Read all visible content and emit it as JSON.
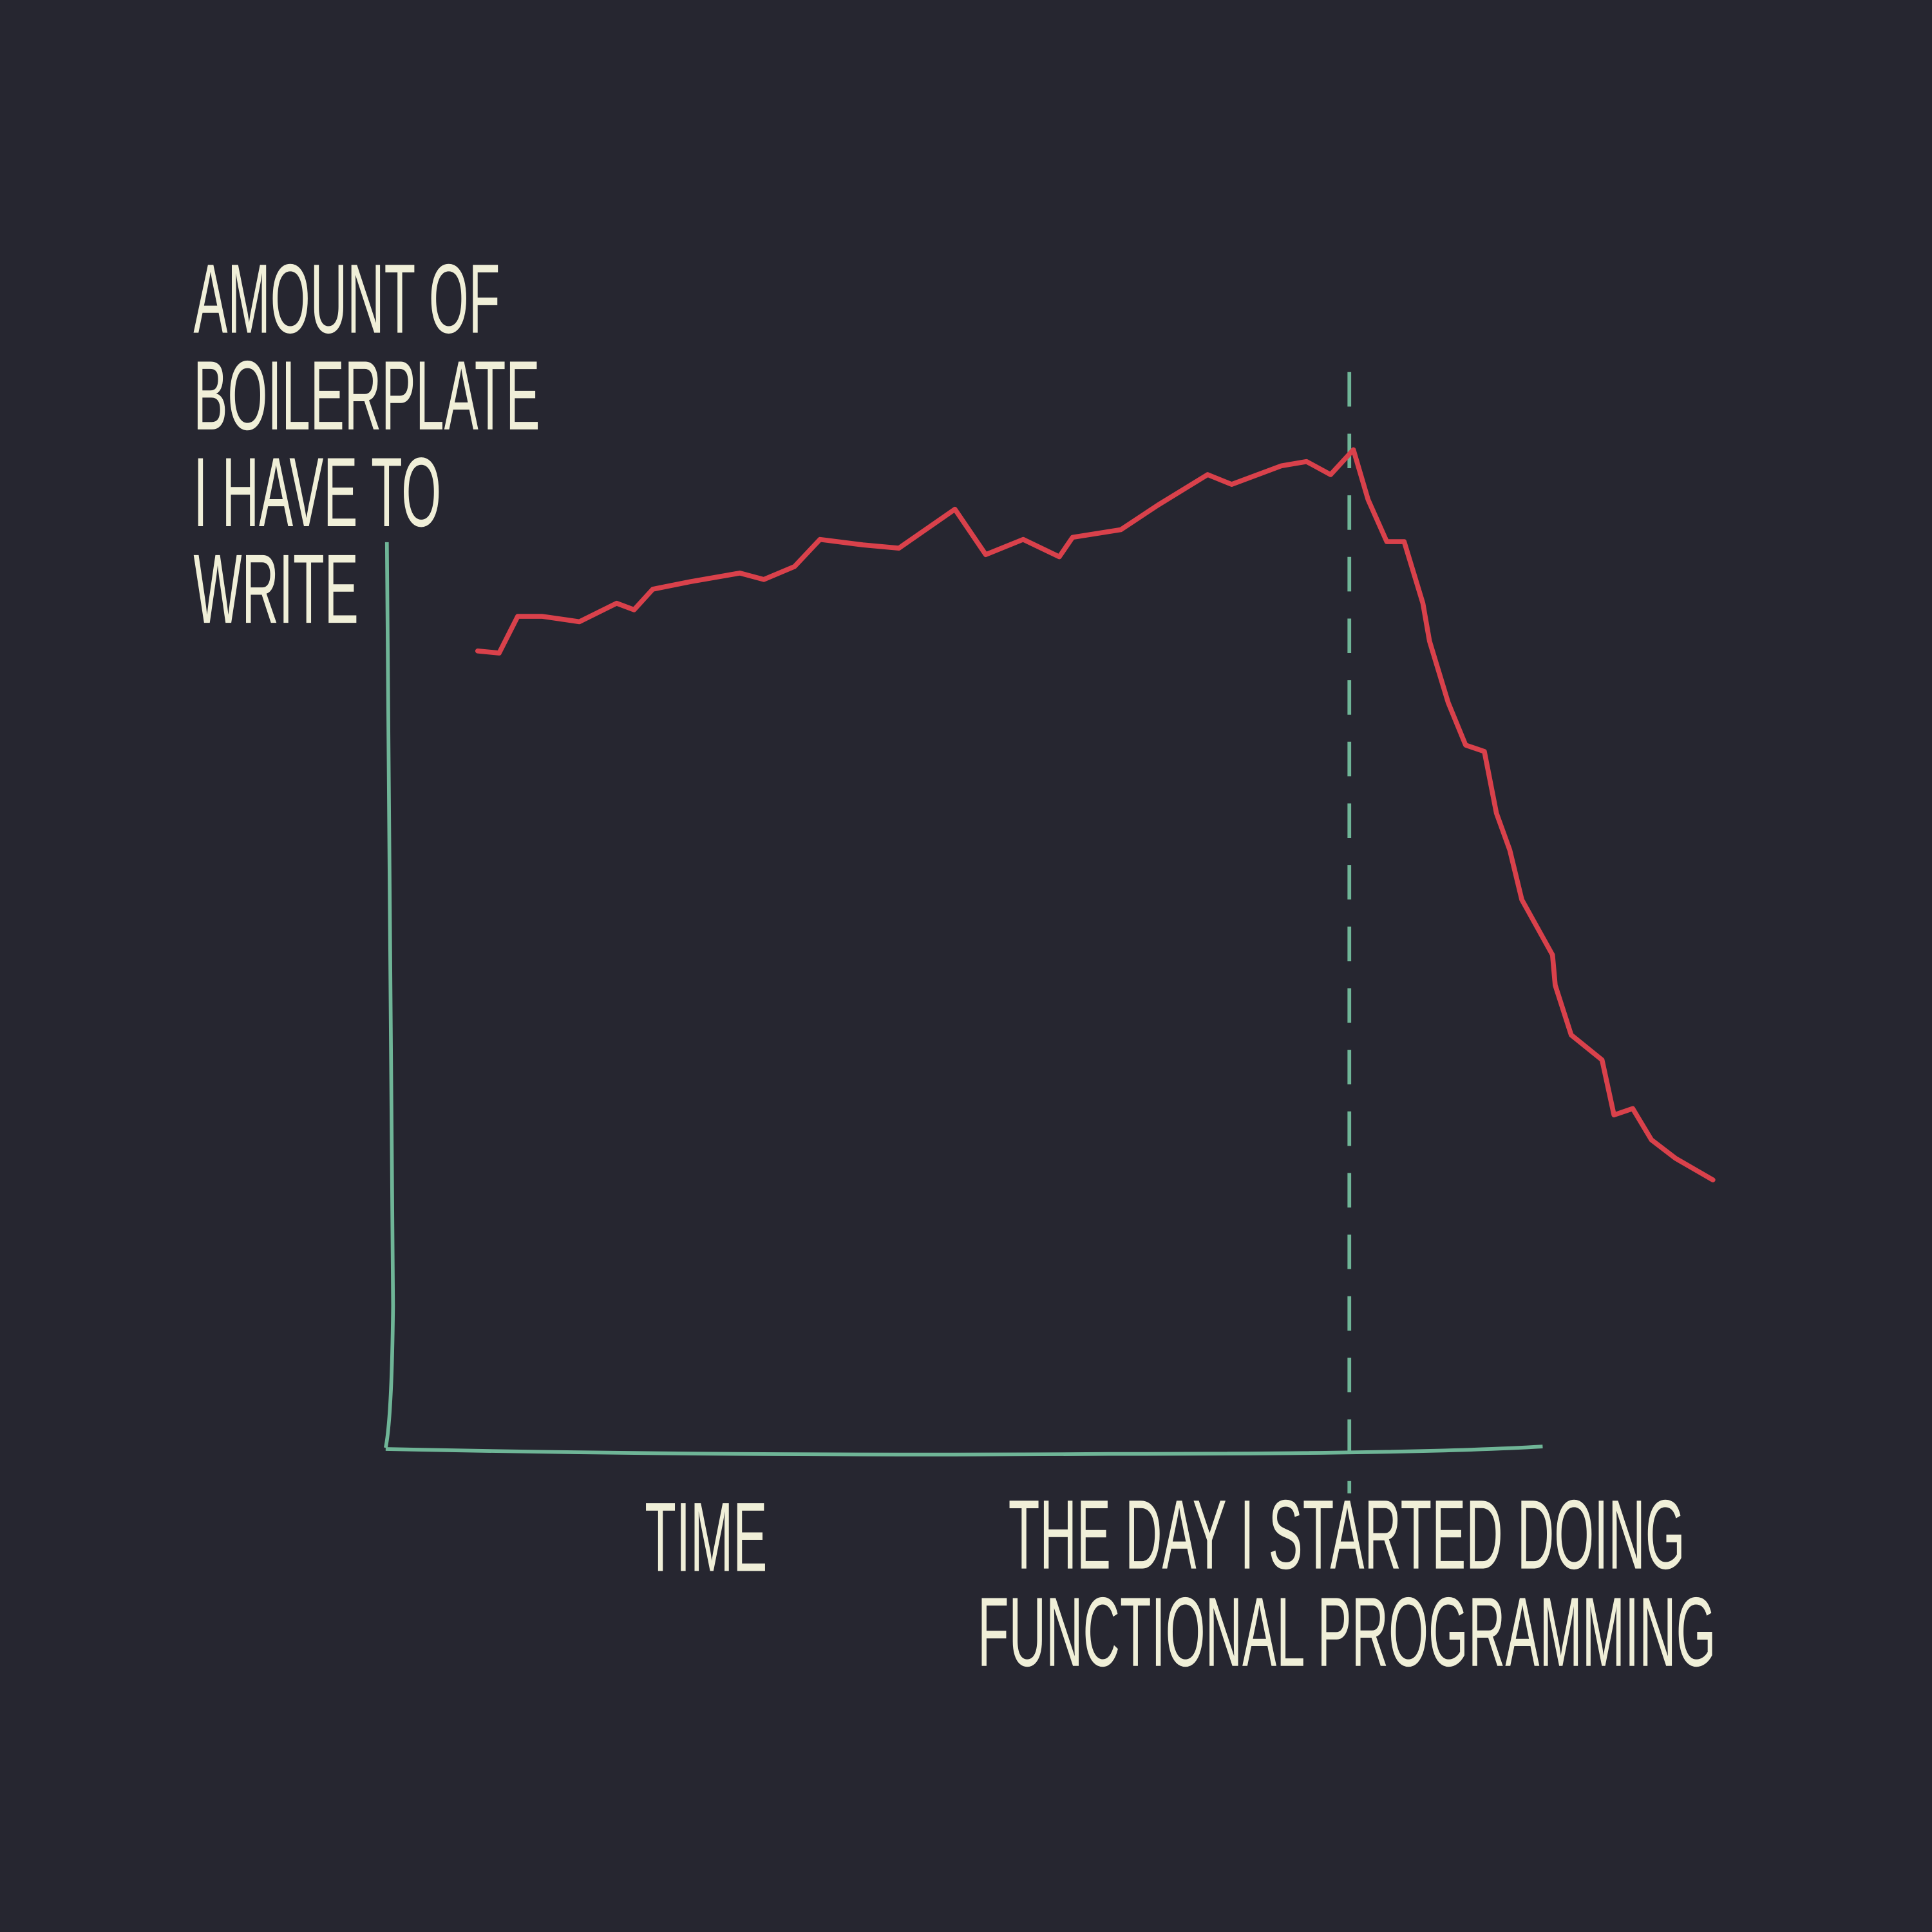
{
  "chart_data": {
    "type": "line",
    "ylabel_lines": [
      "AMOUNT OF",
      "BOILERPLATE",
      "I HAVE TO",
      "WRITE"
    ],
    "xlabel": "TIME",
    "annotation_lines": [
      "THE DAY I STARTED DOING",
      "FUNCTIONAL PROGRAMMING"
    ],
    "annotation_x": 71.9,
    "xlim": [
      0,
      100
    ],
    "ylim": [
      0,
      100
    ],
    "x": [
      6.7,
      8.3,
      9.7,
      11.5,
      14.3,
      17.1,
      18.4,
      19.8,
      22.6,
      26.3,
      28.1,
      30.4,
      32.3,
      35.5,
      38.2,
      42.4,
      44.7,
      47.5,
      50.2,
      51.2,
      54.8,
      57.6,
      61.3,
      63.1,
      66.8,
      68.7,
      70.5,
      72.2,
      73.3,
      74.7,
      76.0,
      77.4,
      77.9,
      79.3,
      80.6,
      82.0,
      82.9,
      83.9,
      84.8,
      87.1,
      87.3,
      88.5,
      90.8,
      91.7,
      93.1,
      94.5,
      96.3,
      99.1
    ],
    "series": [
      {
        "color": "#d9414b",
        "values": [
          74.0,
          73.8,
          77.2,
          77.2,
          76.7,
          78.4,
          77.8,
          79.7,
          80.4,
          81.2,
          80.6,
          81.8,
          84.3,
          83.8,
          83.5,
          87.1,
          82.9,
          84.3,
          82.7,
          84.5,
          85.2,
          87.5,
          90.3,
          89.4,
          91.1,
          91.5,
          90.3,
          92.6,
          88.0,
          84.1,
          84.1,
          78.4,
          74.9,
          69.2,
          65.3,
          64.7,
          59.0,
          55.6,
          51.0,
          45.9,
          43.1,
          38.5,
          36.2,
          31.1,
          31.7,
          28.8,
          27.1,
          25.1
        ]
      }
    ],
    "axis_color": "#6fb597",
    "text_color": "#f0efd8",
    "background": "#262630"
  }
}
